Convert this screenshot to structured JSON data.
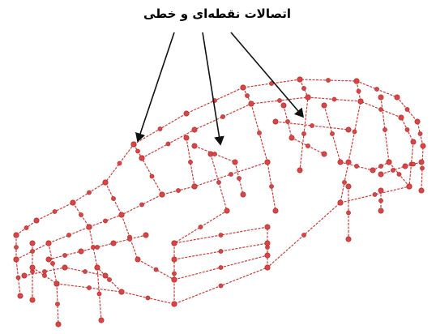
{
  "label": "اتصالات نقطه‌ای و خطی"
}
